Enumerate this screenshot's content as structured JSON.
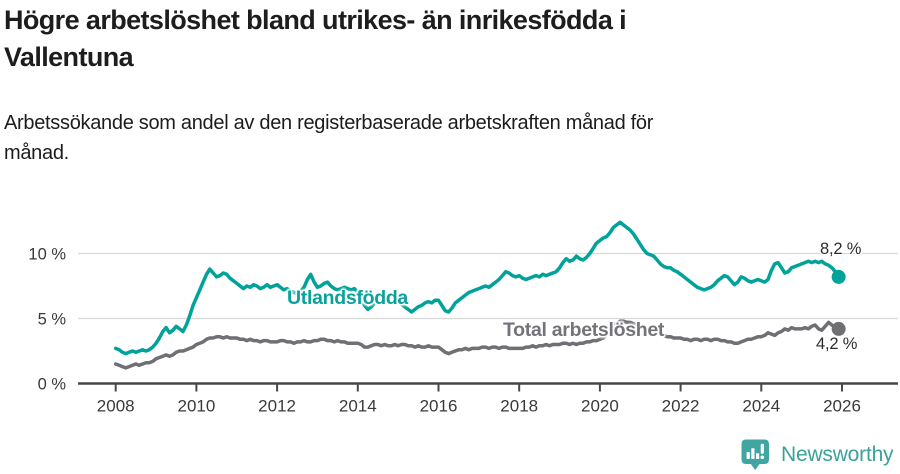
{
  "header": {
    "title": "Högre arbetslöshet bland utrikes- än inrikesfödda i\nVallentuna",
    "subtitle": "Arbetssökande som andel av den registerbaserade arbetskraften månad för\nmånad."
  },
  "chart_data": {
    "type": "line",
    "title": "Högre arbetslöshet bland utrikes- än inrikesfödda i Vallentuna",
    "subtitle": "Arbetssökande som andel av den registerbaserade arbetskraften månad för månad.",
    "xlabel": "",
    "ylabel": "",
    "x_start_year": 2008,
    "points_per_year": 12,
    "x_ticks": [
      2008,
      2010,
      2012,
      2014,
      2016,
      2018,
      2020,
      2022,
      2024,
      2026
    ],
    "ylim": [
      0,
      13
    ],
    "y_ticks": [
      {
        "value": 0,
        "label": "0 %"
      },
      {
        "value": 5,
        "label": "5 %"
      },
      {
        "value": 10,
        "label": "10 %"
      }
    ],
    "grid_values": [
      5,
      10
    ],
    "grid": "horizontal-only",
    "legend_position": "inline-labels",
    "colors": {
      "grid": "#d9d9d9",
      "axis": "#474747",
      "tick_text": "#3a3a3a"
    },
    "series": [
      {
        "name": "Utlandsfödda",
        "color": "#00a29a",
        "label_color": "#0ba29a",
        "end_label": "8,2 %",
        "end_value": 8.2,
        "values": [
          2.7,
          2.6,
          2.4,
          2.3,
          2.4,
          2.5,
          2.4,
          2.5,
          2.6,
          2.5,
          2.6,
          2.8,
          3.1,
          3.5,
          4.0,
          4.3,
          3.9,
          4.1,
          4.4,
          4.2,
          4.0,
          4.5,
          5.2,
          6.0,
          6.6,
          7.2,
          7.8,
          8.4,
          8.8,
          8.5,
          8.2,
          8.3,
          8.5,
          8.4,
          8.1,
          7.9,
          7.7,
          7.5,
          7.3,
          7.5,
          7.4,
          7.6,
          7.5,
          7.3,
          7.4,
          7.6,
          7.4,
          7.5,
          7.6,
          7.4,
          7.2,
          7.3,
          7.1,
          7.0,
          6.9,
          7.1,
          7.4,
          8.0,
          8.4,
          7.8,
          7.4,
          7.5,
          7.7,
          7.8,
          7.5,
          7.3,
          7.2,
          7.3,
          7.4,
          7.3,
          7.2,
          7.3,
          7.0,
          6.5,
          6.0,
          5.7,
          5.9,
          6.2,
          6.4,
          6.3,
          6.2,
          6.3,
          6.2,
          6.4,
          6.3,
          6.1,
          5.9,
          5.7,
          5.5,
          5.7,
          5.9,
          6.0,
          6.2,
          6.3,
          6.2,
          6.4,
          6.4,
          6.0,
          5.6,
          5.5,
          5.8,
          6.2,
          6.4,
          6.6,
          6.8,
          7.0,
          7.1,
          7.2,
          7.3,
          7.4,
          7.5,
          7.4,
          7.6,
          7.8,
          8.0,
          8.3,
          8.6,
          8.5,
          8.3,
          8.2,
          8.3,
          8.1,
          8.0,
          8.1,
          8.2,
          8.3,
          8.2,
          8.4,
          8.3,
          8.4,
          8.5,
          8.6,
          8.9,
          9.3,
          9.6,
          9.4,
          9.5,
          9.8,
          9.6,
          9.5,
          9.7,
          10.0,
          10.4,
          10.8,
          11.0,
          11.2,
          11.3,
          11.6,
          12.0,
          12.2,
          12.4,
          12.2,
          12.0,
          11.8,
          11.5,
          11.1,
          10.7,
          10.3,
          10.0,
          9.9,
          9.8,
          9.5,
          9.2,
          9.0,
          8.9,
          8.9,
          8.7,
          8.6,
          8.4,
          8.2,
          8.0,
          7.8,
          7.6,
          7.4,
          7.3,
          7.2,
          7.3,
          7.4,
          7.6,
          7.9,
          8.1,
          8.3,
          8.2,
          7.9,
          7.6,
          7.8,
          8.2,
          8.1,
          7.9,
          7.8,
          7.9,
          8.0,
          7.9,
          7.8,
          8.0,
          8.7,
          9.2,
          9.3,
          8.9,
          8.5,
          8.6,
          8.9,
          9.0,
          9.1,
          9.2,
          9.3,
          9.4,
          9.3,
          9.4,
          9.3,
          9.4,
          9.2,
          9.1,
          8.9,
          8.6,
          8.2
        ]
      },
      {
        "name": "Total arbetslöshet",
        "color": "#6f6f74",
        "label_color": "#73737a",
        "end_label": "4,2 %",
        "end_value": 4.2,
        "values": [
          1.5,
          1.4,
          1.3,
          1.2,
          1.3,
          1.4,
          1.5,
          1.4,
          1.5,
          1.6,
          1.6,
          1.7,
          1.9,
          2.0,
          2.1,
          2.2,
          2.1,
          2.2,
          2.4,
          2.5,
          2.5,
          2.6,
          2.7,
          2.8,
          3.0,
          3.1,
          3.2,
          3.4,
          3.5,
          3.5,
          3.6,
          3.6,
          3.5,
          3.6,
          3.5,
          3.5,
          3.5,
          3.4,
          3.4,
          3.3,
          3.4,
          3.3,
          3.3,
          3.2,
          3.3,
          3.3,
          3.2,
          3.2,
          3.2,
          3.3,
          3.3,
          3.2,
          3.2,
          3.1,
          3.2,
          3.2,
          3.3,
          3.2,
          3.2,
          3.3,
          3.3,
          3.4,
          3.4,
          3.3,
          3.3,
          3.2,
          3.3,
          3.2,
          3.2,
          3.1,
          3.1,
          3.1,
          3.1,
          3.0,
          2.8,
          2.8,
          2.9,
          3.0,
          3.0,
          2.9,
          3.0,
          2.9,
          2.9,
          3.0,
          2.9,
          3.0,
          3.0,
          2.9,
          2.9,
          2.8,
          2.9,
          2.8,
          2.8,
          2.9,
          2.8,
          2.8,
          2.8,
          2.6,
          2.4,
          2.3,
          2.4,
          2.5,
          2.6,
          2.6,
          2.7,
          2.6,
          2.7,
          2.7,
          2.7,
          2.8,
          2.8,
          2.7,
          2.8,
          2.8,
          2.7,
          2.8,
          2.8,
          2.7,
          2.7,
          2.7,
          2.7,
          2.7,
          2.8,
          2.8,
          2.9,
          2.8,
          2.9,
          2.9,
          3.0,
          2.9,
          3.0,
          3.0,
          3.0,
          3.1,
          3.1,
          3.0,
          3.1,
          3.0,
          3.1,
          3.1,
          3.2,
          3.2,
          3.3,
          3.3,
          3.4,
          3.5,
          3.8,
          4.2,
          4.5,
          4.6,
          4.8,
          4.8,
          4.7,
          4.7,
          4.6,
          4.5,
          4.4,
          4.3,
          4.2,
          4.1,
          4.0,
          3.9,
          3.8,
          3.7,
          3.6,
          3.6,
          3.5,
          3.5,
          3.5,
          3.4,
          3.4,
          3.3,
          3.4,
          3.4,
          3.3,
          3.4,
          3.4,
          3.3,
          3.4,
          3.4,
          3.3,
          3.3,
          3.2,
          3.2,
          3.1,
          3.1,
          3.2,
          3.3,
          3.4,
          3.4,
          3.5,
          3.6,
          3.6,
          3.7,
          3.9,
          3.8,
          3.7,
          3.9,
          4.0,
          4.2,
          4.1,
          4.3,
          4.2,
          4.2,
          4.2,
          4.3,
          4.2,
          4.4,
          4.5,
          4.2,
          4.1,
          4.4,
          4.7,
          4.5,
          4.3,
          4.2
        ]
      }
    ]
  },
  "footer": {
    "brand": "Newsworthy",
    "brand_color": "#3ba09c",
    "logo_color": "#41a6a1",
    "logo_icon": "newsworthy-pin-barchart-icon"
  }
}
